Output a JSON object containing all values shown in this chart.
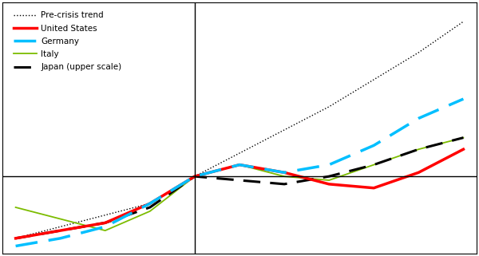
{
  "trend_x": [
    -4,
    -3,
    -2,
    -1,
    0,
    1,
    2,
    3,
    4,
    5,
    6
  ],
  "trend_y": [
    84,
    87,
    90,
    93,
    100,
    106,
    112,
    118,
    125,
    132,
    140
  ],
  "us_x": [
    -4,
    -3,
    -2,
    -1,
    0,
    1,
    2,
    3,
    4,
    5,
    6
  ],
  "us_y": [
    84,
    86,
    88,
    93,
    100,
    103,
    101,
    98,
    97,
    101,
    107
  ],
  "germany_x": [
    -4,
    -3,
    -2,
    -1,
    0,
    1,
    2,
    3,
    4,
    5,
    6
  ],
  "germany_y": [
    82,
    84,
    87,
    93,
    100,
    103,
    101,
    103,
    108,
    115,
    120
  ],
  "italy_x": [
    -4,
    -3,
    -2,
    -1,
    0,
    1,
    2,
    3,
    4,
    5,
    6
  ],
  "italy_y": [
    92,
    89,
    86,
    91,
    100,
    103,
    100,
    99,
    103,
    107,
    110
  ],
  "japan_x": [
    -4,
    -3,
    -2,
    -1,
    0,
    1,
    2,
    3,
    4,
    5,
    6
  ],
  "japan_y": [
    84,
    86,
    88,
    92,
    100,
    99,
    98,
    100,
    103,
    107,
    110
  ],
  "xlim": [
    -4.3,
    6.3
  ],
  "ylim": [
    80,
    145
  ],
  "zero_y": 100,
  "crisis_x": 0,
  "color_trend": "#000000",
  "color_us": "#ff0000",
  "color_germany": "#00bfff",
  "color_italy": "#7cbc00",
  "color_japan": "#000000",
  "legend_labels": [
    "Pre-crisis trend",
    "United States",
    "Germany",
    "Italy",
    "Japan (upper scale)"
  ]
}
